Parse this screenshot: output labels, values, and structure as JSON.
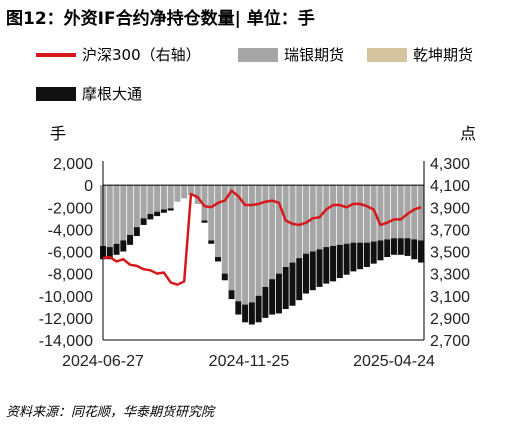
{
  "figure_title": "图12：外资IF合约净持仓数量| 单位：手",
  "legend": [
    {
      "label": "沪深300（右轴）",
      "kind": "line",
      "color": "#d7191c"
    },
    {
      "label": "瑞银期货",
      "kind": "box",
      "color": "#a6a6a6"
    },
    {
      "label": "乾坤期货",
      "kind": "box",
      "color": "#d6c4a0"
    },
    {
      "label": "摩根大通",
      "kind": "box",
      "color": "#111111"
    }
  ],
  "left_unit": "手",
  "right_unit": "点",
  "source": "资料来源：同花顺，华泰期货研究院",
  "chart_data": {
    "type": "bar",
    "stacked": true,
    "x_start": "2024-06-27",
    "x_end": "2025-05-23",
    "xtick_labels": [
      "2024-06-27",
      "2024-11-25",
      "2025-04-24"
    ],
    "ylim": [
      -14000,
      2000
    ],
    "ytick_labels": [
      "2,000",
      "0",
      "-2,000",
      "-4,000",
      "-6,000",
      "-8,000",
      "-10,000",
      "-12,000",
      "-14,000"
    ],
    "y2lim": [
      2700,
      4300
    ],
    "y2tick_labels": [
      "4,300",
      "4,100",
      "3,900",
      "3,700",
      "3,500",
      "3,300",
      "3,100",
      "2,900",
      "2,700"
    ],
    "grid": false,
    "series": [
      {
        "name": "瑞银期货",
        "axis": "left",
        "color": "#a6a6a6",
        "x": [
          "2024-06-27",
          "2024-07-04",
          "2024-07-11",
          "2024-07-18",
          "2024-07-25",
          "2024-08-01",
          "2024-08-08",
          "2024-08-15",
          "2024-08-22",
          "2024-08-29",
          "2024-09-05",
          "2024-09-12",
          "2024-09-19",
          "2024-09-26",
          "2024-10-03",
          "2024-10-10",
          "2024-10-17",
          "2024-10-24",
          "2024-10-31",
          "2024-11-07",
          "2024-11-14",
          "2024-11-21",
          "2024-11-28",
          "2024-12-05",
          "2024-12-12",
          "2024-12-19",
          "2024-12-26",
          "2025-01-02",
          "2025-01-09",
          "2025-01-16",
          "2025-01-23",
          "2025-01-30",
          "2025-02-06",
          "2025-02-13",
          "2025-02-20",
          "2025-02-27",
          "2025-03-06",
          "2025-03-13",
          "2025-03-20",
          "2025-03-27",
          "2025-04-03",
          "2025-04-10",
          "2025-04-17",
          "2025-04-24",
          "2025-05-01",
          "2025-05-08",
          "2025-05-15",
          "2025-05-22"
        ],
        "values": [
          -5500,
          -5600,
          -5300,
          -5000,
          -4500,
          -3800,
          -3000,
          -2600,
          -2400,
          -2200,
          -2100,
          -1500,
          -1200,
          -900,
          -1700,
          -3200,
          -5000,
          -6500,
          -8000,
          -9500,
          -10500,
          -10800,
          -10600,
          -10000,
          -9200,
          -8500,
          -8000,
          -7400,
          -7000,
          -6600,
          -6200,
          -6000,
          -5800,
          -5600,
          -5500,
          -5400,
          -5300,
          -5200,
          -5200,
          -5200,
          -5100,
          -5000,
          -4900,
          -4800,
          -4800,
          -4800,
          -4900,
          -5000
        ]
      },
      {
        "name": "乾坤期货",
        "axis": "left",
        "color": "#d6c4a0",
        "x": [
          "2024-06-27",
          "2024-07-04",
          "2024-07-11",
          "2024-07-18",
          "2024-07-25",
          "2024-08-01",
          "2024-08-08",
          "2024-08-15",
          "2024-08-22",
          "2024-08-29",
          "2024-09-05",
          "2024-09-12",
          "2024-09-19",
          "2024-09-26",
          "2024-10-03",
          "2024-10-10",
          "2024-10-17",
          "2024-10-24",
          "2024-10-31",
          "2024-11-07",
          "2024-11-14",
          "2024-11-21",
          "2024-11-28",
          "2024-12-05",
          "2024-12-12",
          "2024-12-19",
          "2024-12-26",
          "2025-01-02",
          "2025-01-09",
          "2025-01-16",
          "2025-01-23",
          "2025-01-30",
          "2025-02-06",
          "2025-02-13",
          "2025-02-20",
          "2025-02-27",
          "2025-03-06",
          "2025-03-13",
          "2025-03-20",
          "2025-03-27",
          "2025-04-03",
          "2025-04-10",
          "2025-04-17",
          "2025-04-24",
          "2025-05-01",
          "2025-05-08",
          "2025-05-15",
          "2025-05-22"
        ],
        "values": [
          0,
          0,
          0,
          0,
          0,
          0,
          0,
          0,
          0,
          0,
          0,
          0,
          0,
          0,
          0,
          0,
          0,
          0,
          0,
          0,
          0,
          0,
          0,
          0,
          0,
          0,
          0,
          0,
          0,
          0,
          0,
          0,
          0,
          0,
          0,
          0,
          0,
          0,
          0,
          0,
          0,
          0,
          0,
          0,
          0,
          0,
          0,
          0
        ]
      },
      {
        "name": "摩根大通",
        "axis": "left",
        "color": "#111111",
        "x": [
          "2024-06-27",
          "2024-07-04",
          "2024-07-11",
          "2024-07-18",
          "2024-07-25",
          "2024-08-01",
          "2024-08-08",
          "2024-08-15",
          "2024-08-22",
          "2024-08-29",
          "2024-09-05",
          "2024-09-12",
          "2024-09-19",
          "2024-09-26",
          "2024-10-03",
          "2024-10-10",
          "2024-10-17",
          "2024-10-24",
          "2024-10-31",
          "2024-11-07",
          "2024-11-14",
          "2024-11-21",
          "2024-11-28",
          "2024-12-05",
          "2024-12-12",
          "2024-12-19",
          "2024-12-26",
          "2025-01-02",
          "2025-01-09",
          "2025-01-16",
          "2025-01-23",
          "2025-01-30",
          "2025-02-06",
          "2025-02-13",
          "2025-02-20",
          "2025-02-27",
          "2025-03-06",
          "2025-03-13",
          "2025-03-20",
          "2025-03-27",
          "2025-04-03",
          "2025-04-10",
          "2025-04-17",
          "2025-04-24",
          "2025-05-01",
          "2025-05-08",
          "2025-05-15",
          "2025-05-22"
        ],
        "values": [
          -1200,
          -1100,
          -1000,
          -1000,
          -900,
          -800,
          -600,
          -500,
          -400,
          -300,
          -200,
          0,
          0,
          0,
          0,
          -200,
          -300,
          -400,
          -600,
          -800,
          -1200,
          -1600,
          -2000,
          -2400,
          -2800,
          -3200,
          -3600,
          -3800,
          -3900,
          -3800,
          -3600,
          -3500,
          -3400,
          -3300,
          -3200,
          -3000,
          -2800,
          -2600,
          -2400,
          -2200,
          -2000,
          -1800,
          -1600,
          -1500,
          -1500,
          -1600,
          -1800,
          -2000
        ]
      },
      {
        "name": "沪深300（右轴）",
        "axis": "right",
        "color": "#d7191c",
        "type": "line",
        "x": [
          "2024-06-27",
          "2024-07-04",
          "2024-07-11",
          "2024-07-18",
          "2024-07-25",
          "2024-08-01",
          "2024-08-08",
          "2024-08-15",
          "2024-08-22",
          "2024-08-29",
          "2024-09-05",
          "2024-09-12",
          "2024-09-19",
          "2024-09-26",
          "2024-10-03",
          "2024-10-10",
          "2024-10-17",
          "2024-10-24",
          "2024-10-31",
          "2024-11-07",
          "2024-11-14",
          "2024-11-21",
          "2024-11-28",
          "2024-12-05",
          "2024-12-12",
          "2024-12-19",
          "2024-12-26",
          "2025-01-02",
          "2025-01-09",
          "2025-01-16",
          "2025-01-23",
          "2025-01-30",
          "2025-02-06",
          "2025-02-13",
          "2025-02-20",
          "2025-02-27",
          "2025-03-06",
          "2025-03-13",
          "2025-03-20",
          "2025-03-27",
          "2025-04-03",
          "2025-04-10",
          "2025-04-17",
          "2025-04-24",
          "2025-05-01",
          "2025-05-08",
          "2025-05-15",
          "2025-05-22"
        ],
        "values": [
          3440,
          3450,
          3410,
          3430,
          3380,
          3370,
          3340,
          3330,
          3300,
          3310,
          3220,
          3200,
          3230,
          4020,
          3990,
          3910,
          3900,
          3940,
          3960,
          4050,
          4000,
          3920,
          3920,
          3930,
          3950,
          3960,
          3940,
          3780,
          3750,
          3740,
          3760,
          3800,
          3810,
          3880,
          3920,
          3920,
          3900,
          3930,
          3930,
          3910,
          3880,
          3740,
          3760,
          3790,
          3790,
          3840,
          3880,
          3900
        ]
      }
    ]
  }
}
